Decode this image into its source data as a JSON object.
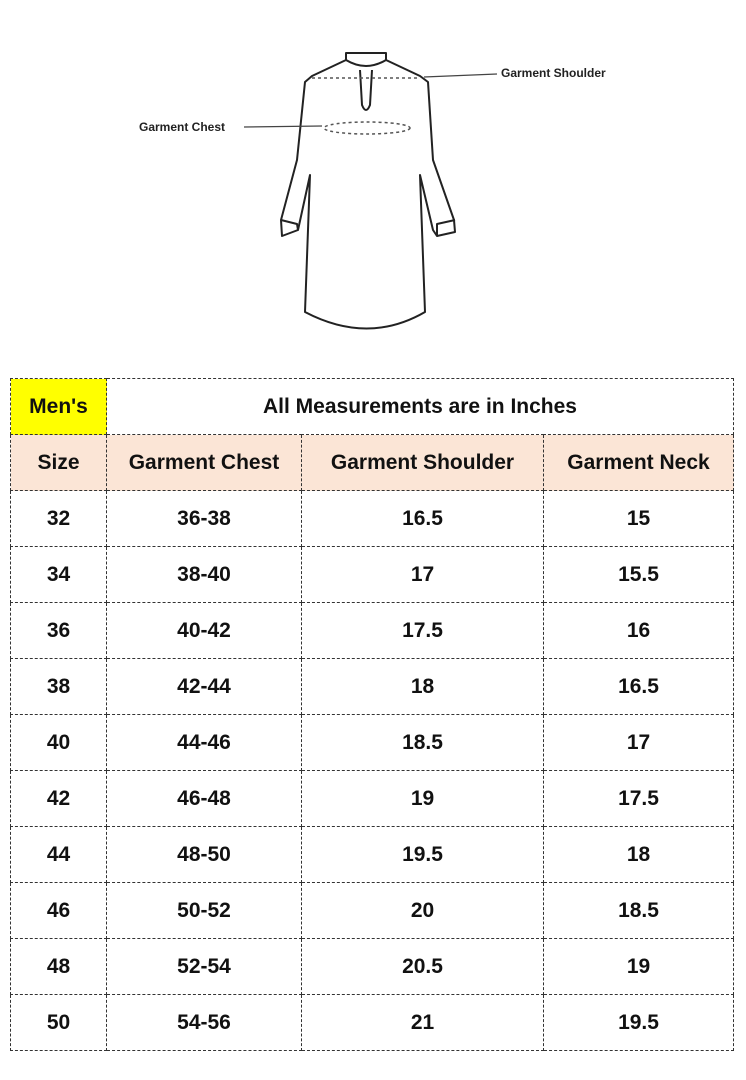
{
  "diagram": {
    "shoulder_label": "Garment Shoulder",
    "chest_label": "Garment Chest"
  },
  "table": {
    "category": "Men's",
    "note": "All Measurements are in Inches",
    "headers": [
      "Size",
      "Garment Chest",
      "Garment Shoulder",
      "Garment Neck"
    ],
    "rows": [
      [
        "32",
        "36-38",
        "16.5",
        "15"
      ],
      [
        "34",
        "38-40",
        "17",
        "15.5"
      ],
      [
        "36",
        "40-42",
        "17.5",
        "16"
      ],
      [
        "38",
        "42-44",
        "18",
        "16.5"
      ],
      [
        "40",
        "44-46",
        "18.5",
        "17"
      ],
      [
        "42",
        "46-48",
        "19",
        "17.5"
      ],
      [
        "44",
        "48-50",
        "19.5",
        "18"
      ],
      [
        "46",
        "50-52",
        "20",
        "18.5"
      ],
      [
        "48",
        "52-54",
        "20.5",
        "19"
      ],
      [
        "50",
        "54-56",
        "21",
        "19.5"
      ]
    ]
  },
  "colors": {
    "category_bg": "#ffff00",
    "header_bg": "#fbe5d6"
  }
}
